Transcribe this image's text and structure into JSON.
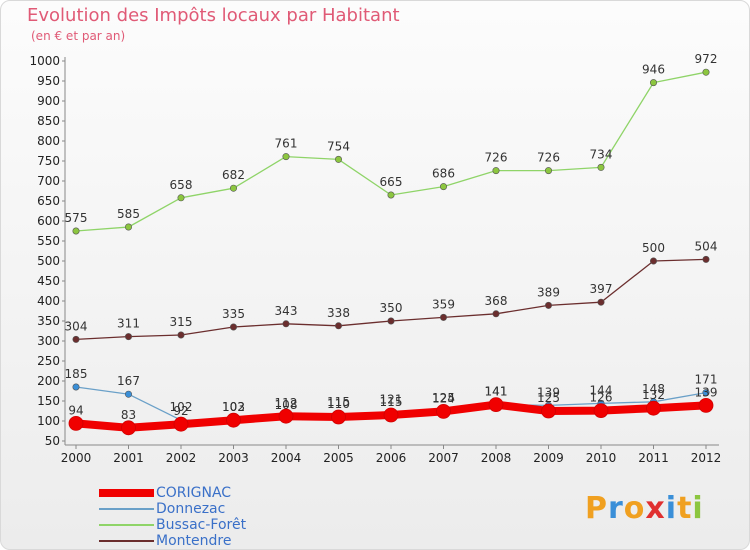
{
  "title": "Evolution des Impôts locaux par Habitant",
  "subtitle": "(en € et par an)",
  "brand": {
    "letters": [
      "P",
      "r",
      "o",
      "x",
      "i",
      "t",
      "i"
    ],
    "colors": [
      "#f0a020",
      "#3a8fd8",
      "#f0a020",
      "#e03030",
      "#3a8fd8",
      "#f0a020",
      "#8cc63f"
    ]
  },
  "chart_data": {
    "type": "line",
    "title": "Evolution des Impôts locaux par Habitant",
    "subtitle": "(en € et par an)",
    "x": [
      "2000",
      "2001",
      "2002",
      "2003",
      "2004",
      "2005",
      "2006",
      "2007",
      "2008",
      "2009",
      "2010",
      "2011",
      "2012"
    ],
    "ylim": [
      50,
      1000
    ],
    "yticks": [
      50,
      100,
      150,
      200,
      250,
      300,
      350,
      400,
      450,
      500,
      550,
      600,
      650,
      700,
      750,
      800,
      850,
      900,
      950,
      1000
    ],
    "ytick_labels": [
      "50",
      "100",
      "150",
      "200",
      "250",
      "300",
      "350",
      "400",
      "450",
      "500",
      "550",
      "600",
      "650",
      "700",
      "750",
      "800",
      "850",
      "900",
      "950",
      "1000"
    ],
    "grid": false,
    "legend_position": "bottom-left",
    "series": [
      {
        "name": "Bussac-Forêt",
        "color": "#8fd468",
        "marker": "#8cc63f",
        "width": 1.3,
        "values": [
          575,
          585,
          658,
          682,
          761,
          754,
          665,
          686,
          726,
          726,
          734,
          946,
          972
        ]
      },
      {
        "name": "Montendre",
        "color": "#6b2e2e",
        "marker": "#6b2e2e",
        "width": 1.3,
        "values": [
          304,
          311,
          315,
          335,
          343,
          338,
          350,
          359,
          368,
          389,
          397,
          500,
          504
        ]
      },
      {
        "name": "Donnezac",
        "color": "#6aa0c8",
        "marker": "#3a8fd8",
        "width": 1.3,
        "values": [
          185,
          167,
          102,
          103,
          108,
          115,
          121,
          125,
          141,
          139,
          144,
          148,
          171
        ]
      },
      {
        "name": "CORIGNAC",
        "color": "#f00000",
        "marker": "#f00000",
        "width": 8,
        "values": [
          94,
          83,
          92,
          102,
          112,
          110,
          115,
          124,
          141,
          125,
          126,
          132,
          139
        ]
      }
    ],
    "data_labels": [
      [
        "575",
        "585",
        "658",
        "682",
        "761",
        "754",
        "665",
        "686",
        "726",
        "726",
        "734",
        "946",
        "972"
      ],
      [
        "304",
        "311",
        "315",
        "335",
        "343",
        "338",
        "350",
        "359",
        "368",
        "389",
        "397",
        "500",
        "504"
      ],
      [
        "185",
        "167",
        "102",
        "103",
        "108",
        "115",
        "121",
        "125",
        "141",
        "139",
        "144",
        "148",
        "171"
      ],
      [
        "94",
        "83",
        "92",
        "102",
        "112",
        "110",
        "115",
        "124",
        "141",
        "125",
        "126",
        "132",
        "139"
      ]
    ]
  }
}
